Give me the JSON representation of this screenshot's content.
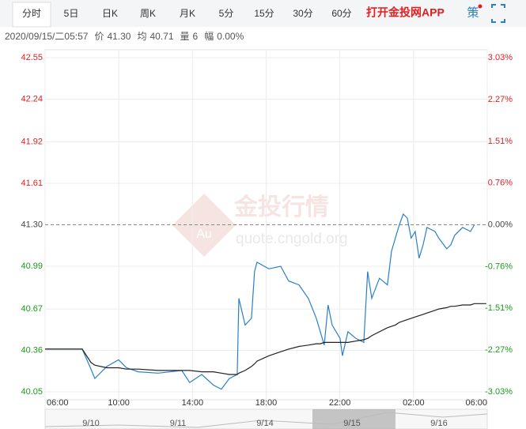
{
  "tabs": [
    "分时",
    "5日",
    "日K",
    "周K",
    "月K",
    "5分",
    "15分",
    "30分",
    "60分"
  ],
  "app_link": "打开金投网APP",
  "strategy_icon": "策",
  "quote": {
    "time": "2020/09/15/二05:57",
    "fields": [
      {
        "label": "价",
        "value": "41.30"
      },
      {
        "label": "均",
        "value": "40.71"
      },
      {
        "label": "量",
        "value": "6"
      },
      {
        "label": "幅",
        "value": "0.00%"
      }
    ]
  },
  "watermark": {
    "title": "金投行情",
    "site": "quote.cngold.org",
    "logo": "Au"
  },
  "navigator": {
    "dates": [
      "9/10",
      "9/11",
      "9/14",
      "9/15",
      "9/16"
    ]
  },
  "chart_data": {
    "type": "line",
    "x": [
      0,
      2.02,
      2.49,
      2.7,
      3.35,
      3.99,
      4.42,
      5.06,
      6.14,
      7.42,
      7.85,
      8.5,
      9.14,
      9.57,
      10,
      10.43,
      10.52,
      10.86,
      11.2,
      11.37,
      11.5,
      12.15,
      12.79,
      13.22,
      13.78,
      14.29,
      14.72,
      14.94,
      15.15,
      15.36,
      15.58,
      16.01,
      16.14,
      16.44,
      16.87,
      17.3,
      17.51,
      17.73,
      18.15,
      18.58,
      18.8,
      19.01,
      19.23,
      19.44,
      19.66,
      19.87,
      20.09,
      20.3,
      20.52,
      20.73,
      21.16,
      21.37,
      21.8,
      22.02,
      22.23,
      22.66,
      23.09,
      23.3,
      23.95
    ],
    "series": [
      {
        "color": "#2a7fc9",
        "values": [
          40.37,
          40.37,
          40.22,
          40.15,
          40.24,
          40.29,
          40.23,
          40.2,
          40.19,
          40.21,
          40.12,
          40.18,
          40.1,
          40.07,
          40.15,
          40.18,
          40.75,
          40.55,
          40.6,
          40.95,
          41.02,
          40.97,
          40.99,
          40.88,
          40.85,
          40.75,
          40.6,
          40.5,
          40.4,
          40.7,
          40.55,
          40.45,
          40.32,
          40.5,
          40.45,
          40.42,
          40.95,
          40.75,
          40.9,
          40.85,
          41.1,
          41.2,
          41.3,
          41.38,
          41.35,
          41.2,
          41.25,
          41.05,
          41.15,
          41.28,
          41.25,
          41.2,
          41.12,
          41.15,
          41.22,
          41.28,
          41.25,
          41.3,
          null
        ]
      },
      {
        "color": "#222222",
        "values": [
          40.37,
          40.37,
          40.27,
          40.25,
          40.23,
          40.23,
          40.22,
          40.22,
          40.21,
          40.21,
          40.21,
          40.2,
          40.2,
          40.19,
          40.18,
          40.18,
          40.19,
          40.21,
          40.24,
          40.26,
          40.28,
          40.32,
          40.35,
          40.37,
          40.39,
          40.4,
          40.41,
          40.41,
          40.42,
          40.42,
          40.42,
          40.42,
          40.42,
          40.42,
          40.43,
          40.44,
          40.45,
          40.47,
          40.5,
          40.53,
          40.54,
          40.55,
          40.57,
          40.58,
          40.59,
          40.6,
          40.61,
          40.62,
          40.63,
          40.64,
          40.66,
          40.67,
          40.68,
          40.69,
          40.69,
          40.7,
          40.7,
          40.71,
          40.71
        ]
      }
    ],
    "xlim": [
      0,
      24
    ],
    "xticks": [
      {
        "value": 0,
        "label": "06:00"
      },
      {
        "value": 4,
        "label": "10:00"
      },
      {
        "value": 8,
        "label": "14:00"
      },
      {
        "value": 12,
        "label": "18:00"
      },
      {
        "value": 16,
        "label": "22:00"
      },
      {
        "value": 20,
        "label": "02:00"
      },
      {
        "value": 24,
        "label": "06:00"
      }
    ],
    "ylim": [
      40.05,
      42.55
    ],
    "yticks": [
      {
        "value": 42.55,
        "label": "42.55"
      },
      {
        "value": 42.24,
        "label": "42.24"
      },
      {
        "value": 41.92,
        "label": "41.92"
      },
      {
        "value": 41.61,
        "label": "41.61"
      },
      {
        "value": 41.3,
        "label": "41.30"
      },
      {
        "value": 40.99,
        "label": "40.99"
      },
      {
        "value": 40.67,
        "label": "40.67"
      },
      {
        "value": 40.36,
        "label": "40.36"
      },
      {
        "value": 40.05,
        "label": "40.05"
      }
    ],
    "y2lim": [
      -3.03,
      3.03
    ],
    "y2ticks": [
      {
        "value": 3.03,
        "label": "3.03%"
      },
      {
        "value": 2.27,
        "label": "2.27%"
      },
      {
        "value": 1.51,
        "label": "1.51%"
      },
      {
        "value": 0.76,
        "label": "0.76%"
      },
      {
        "value": 0,
        "label": "0.00%"
      },
      {
        "value": -0.76,
        "label": "-0.76%"
      },
      {
        "value": -1.51,
        "label": "-1.51%"
      },
      {
        "value": -2.27,
        "label": "-2.27%"
      },
      {
        "value": -3.03,
        "label": "-3.03%"
      }
    ],
    "baseline": 41.3,
    "grid": true,
    "up_color": "#e02020",
    "down_color": "#1a9a1a"
  }
}
